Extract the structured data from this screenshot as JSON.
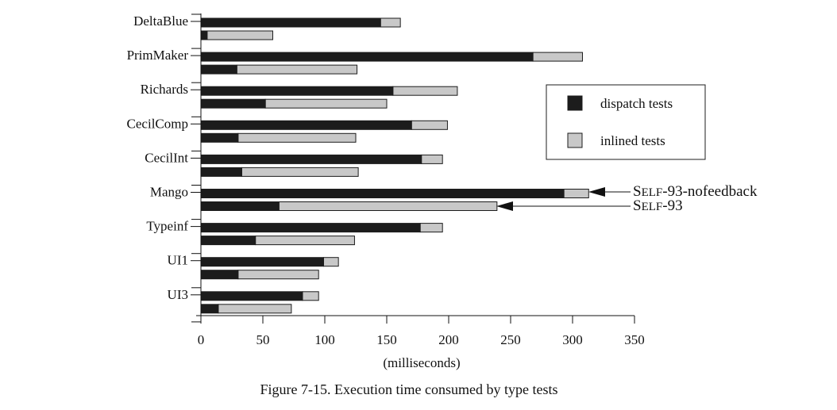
{
  "chart_data": {
    "type": "bar",
    "orientation": "horizontal",
    "stacked": true,
    "categories": [
      "DeltaBlue",
      "PrimMaker",
      "Richards",
      "CecilComp",
      "CecilInt",
      "Mango",
      "Typeinf",
      "UI1",
      "UI3"
    ],
    "bar_groups": [
      {
        "name": "SELF-93-nofeedback",
        "dispatch_tests": [
          145,
          268,
          155,
          170,
          178,
          293,
          177,
          99,
          82
        ],
        "total": [
          161,
          308,
          207,
          199,
          195,
          313,
          195,
          111,
          95
        ]
      },
      {
        "name": "SELF-93",
        "dispatch_tests": [
          5,
          29,
          52,
          30,
          33,
          63,
          44,
          30,
          14
        ],
        "total": [
          58,
          126,
          150,
          125,
          127,
          239,
          124,
          95,
          73
        ]
      }
    ],
    "series_legend": [
      {
        "name": "dispatch tests",
        "color": "#1c1c1c"
      },
      {
        "name": "inlined tests",
        "color": "#c8c8c8"
      }
    ],
    "x_ticks": [
      0,
      50,
      100,
      150,
      200,
      250,
      300,
      350
    ],
    "xlim": [
      0,
      350
    ],
    "xlabel": "(milliseconds)",
    "grid": false,
    "legend_position": "right",
    "annotations": [
      {
        "prefix": "S",
        "smallcaps": "ELF",
        "suffix": "-93-nofeedback",
        "points_to": "Mango, top bar"
      },
      {
        "prefix": "S",
        "smallcaps": "ELF",
        "suffix": "-93",
        "points_to": "Mango, bottom bar"
      }
    ]
  },
  "caption": "Figure 7-15.  Execution time consumed by type tests",
  "colors": {
    "dark": "#1c1c1c",
    "light": "#c8c8c8",
    "outline": "#1c1c1c"
  }
}
